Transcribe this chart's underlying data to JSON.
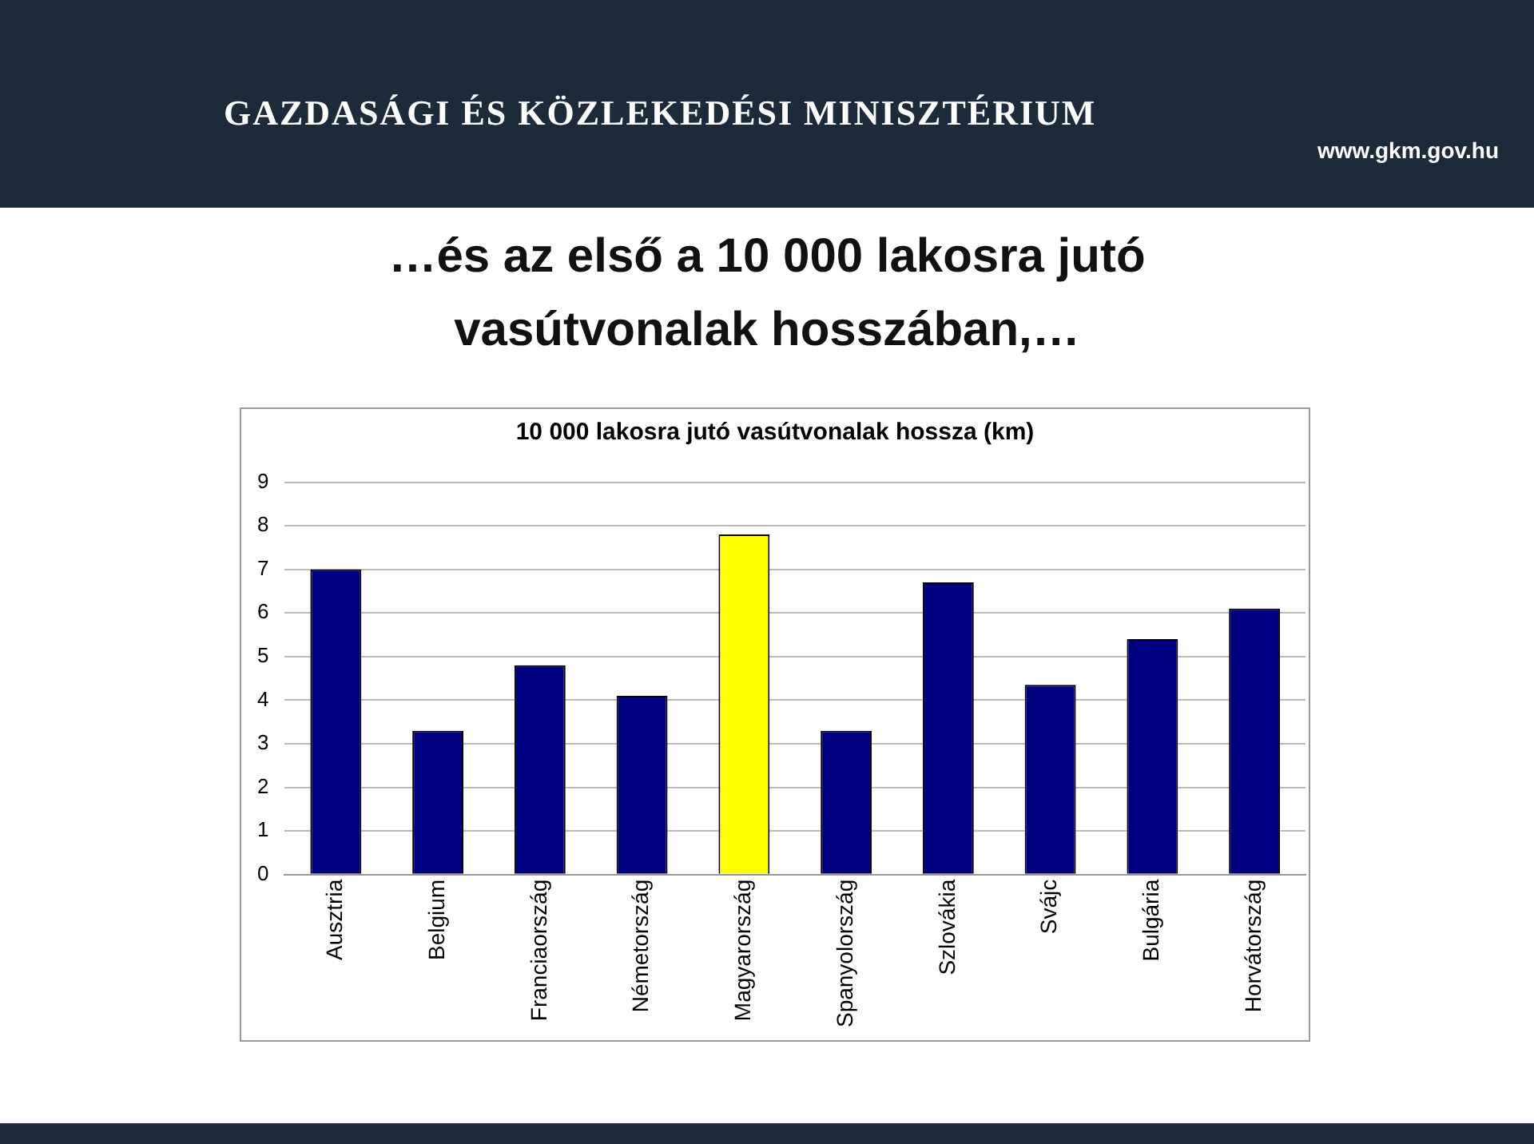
{
  "chart_data": {
    "type": "bar",
    "title": "…és az első a 10 000 lakosra jutó vasútvonalak hosszában,…",
    "subtitle": "10 000 lakosra jutó vasútvonalak hossza (km)",
    "annotations": [
      "GAZDASÁGI ÉS KÖZLEKEDÉSI MINISZTÉRIUM",
      "www.gkm.gov.hu"
    ],
    "categories": [
      "Ausztria",
      "Belgium",
      "Franciaország",
      "Németország",
      "Magyarország",
      "Spanyolország",
      "Szlovákia",
      "Svájc",
      "Bulgária",
      "Horvátország"
    ],
    "values": [
      7.0,
      3.3,
      4.8,
      4.1,
      7.8,
      3.3,
      6.7,
      4.35,
      5.4,
      6.1
    ],
    "colors": [
      "#000080",
      "#000080",
      "#000080",
      "#000080",
      "#ffff00",
      "#000080",
      "#000080",
      "#000080",
      "#000080",
      "#000080"
    ],
    "ylim": [
      0,
      9
    ],
    "yticks": [
      0,
      1,
      2,
      3,
      4,
      5,
      6,
      7,
      8,
      9
    ],
    "grid": "y",
    "legend": false
  }
}
